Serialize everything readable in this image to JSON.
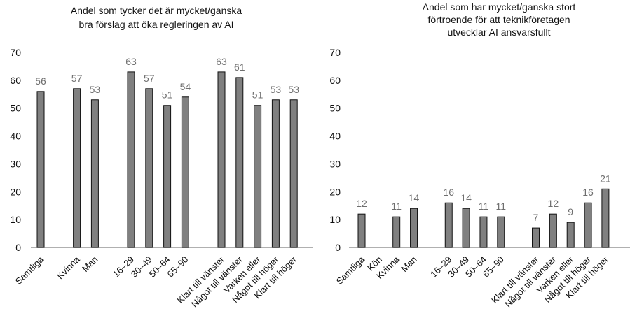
{
  "chart_data": [
    {
      "type": "bar",
      "title_lines": [
        "Andel som tycker det är mycket/ganska",
        "bra förslag att öka regleringen av AI"
      ],
      "ylim": [
        0,
        70
      ],
      "yticks": [
        "0",
        "10",
        "20",
        "30",
        "40",
        "50",
        "60",
        "70"
      ],
      "categories": [
        "Samtliga",
        "",
        "Kvinna",
        "Man",
        "",
        "16‒29",
        "30‒49",
        "50‒64",
        "65‒90",
        "",
        "Klart till vänster",
        "Något till vänster",
        "Varken eller",
        "Något till höger",
        "Klart till höger"
      ],
      "values": [
        56,
        null,
        57,
        53,
        null,
        63,
        57,
        51,
        54,
        null,
        63,
        61,
        51,
        53,
        53
      ],
      "bar_color": "#808080",
      "grid": false
    },
    {
      "type": "bar",
      "title_lines": [
        "Andel som har mycket/ganska stort",
        "förtroende för att teknikföretagen",
        "utvecklar AI ansvarsfullt"
      ],
      "ylim": [
        0,
        70
      ],
      "yticks": [
        "0",
        "10",
        "20",
        "30",
        "40",
        "50",
        "60",
        "70"
      ],
      "categories": [
        "Samtliga",
        "Kön",
        "Kvinna",
        "Man",
        "",
        "16‒29",
        "30‒49",
        "50‒64",
        "65‒90",
        "",
        "Klart till vänster",
        "Något till vänster",
        "Varken eller",
        "Något till höger",
        "Klart till höger"
      ],
      "values": [
        12,
        null,
        11,
        14,
        null,
        16,
        14,
        11,
        11,
        null,
        7,
        12,
        9,
        16,
        21
      ],
      "bar_color": "#808080",
      "grid": false
    }
  ]
}
